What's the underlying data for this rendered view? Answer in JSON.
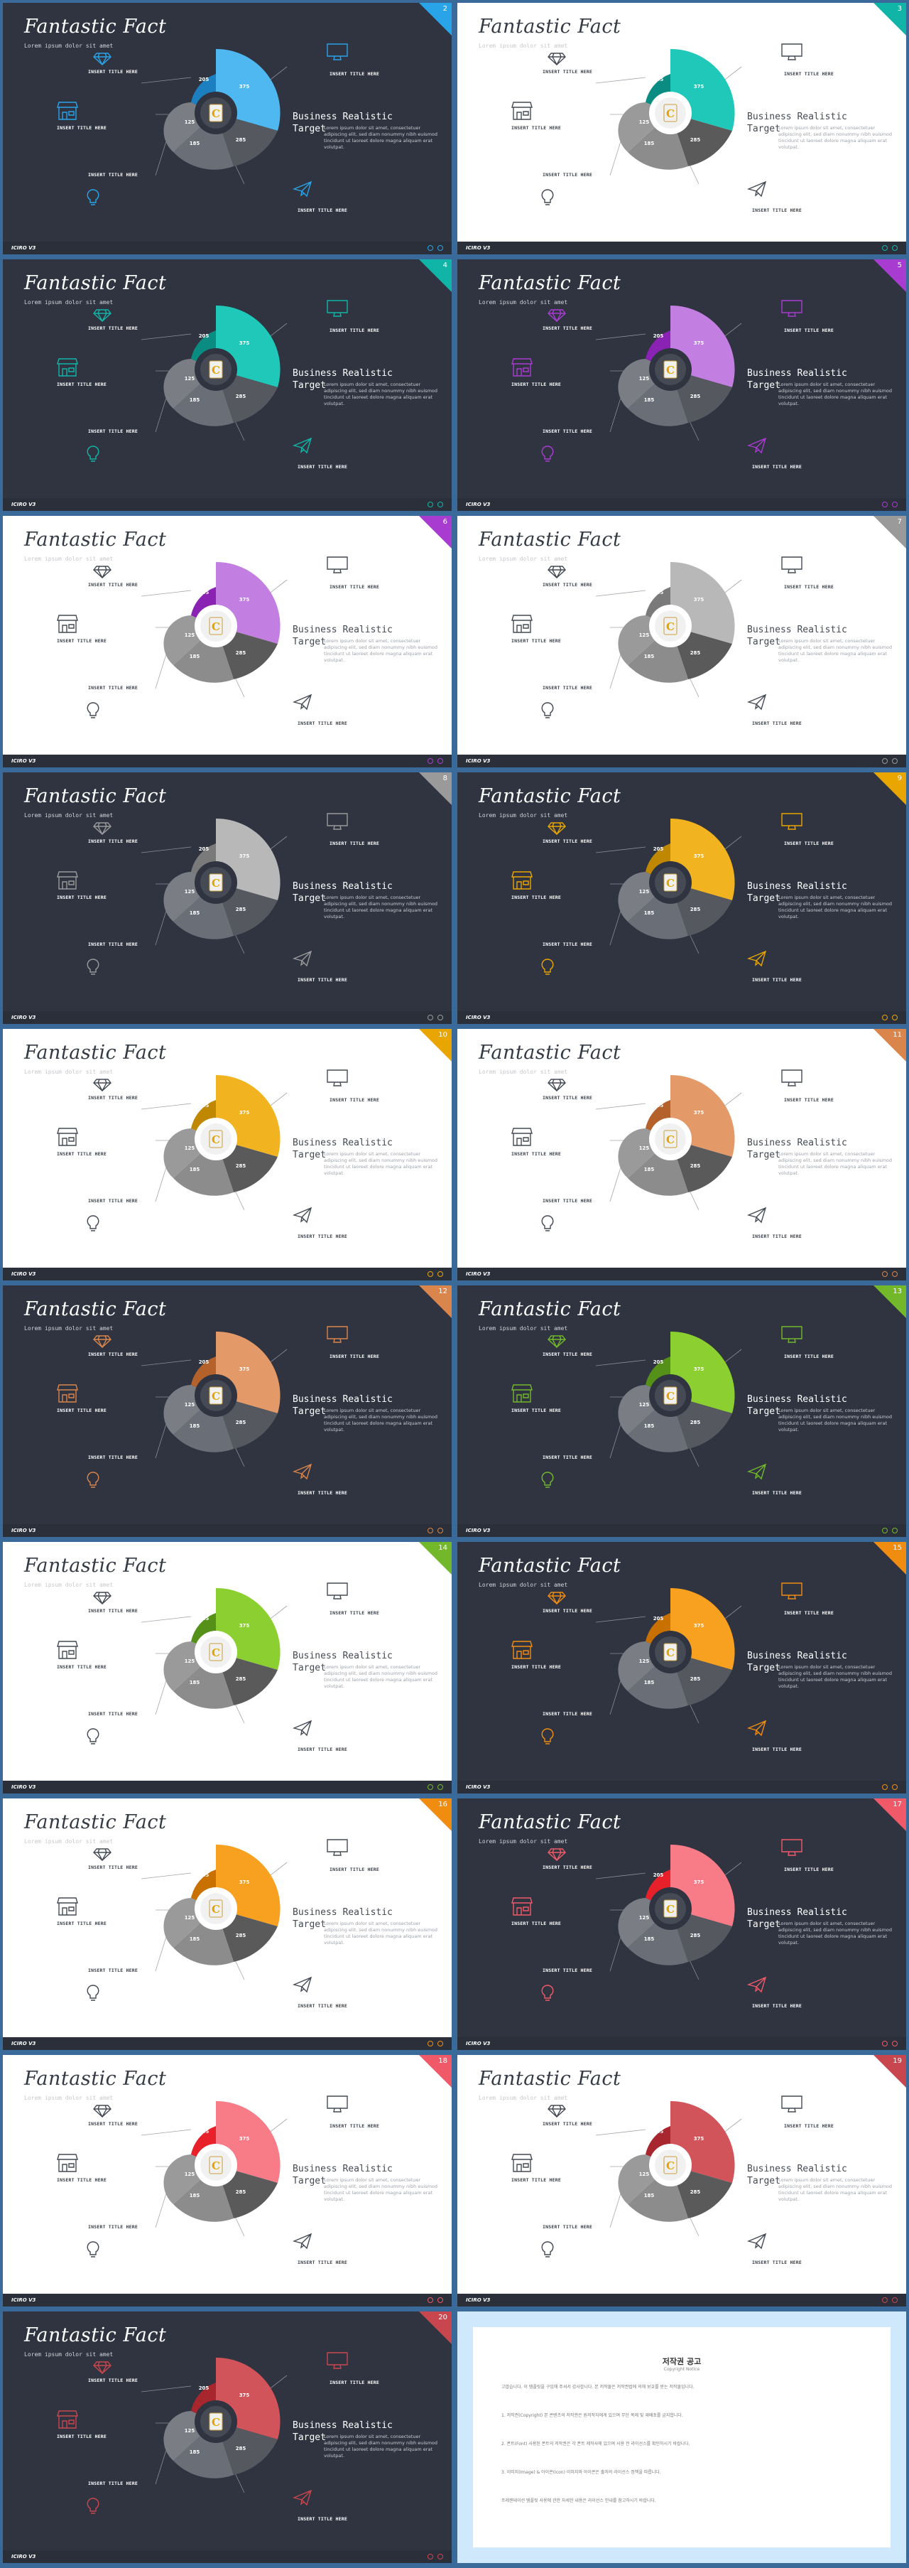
{
  "slide_common": {
    "title": "Fantastic Fact",
    "subtitle": "Lorem ipsum dolor sit amet",
    "values": [
      "205",
      "375",
      "285",
      "185",
      "125"
    ],
    "center_letter": "C",
    "label_top_left": "INSERT TITLE HERE",
    "label_top_right": "INSERT TITLE HERE",
    "label_mid_left": "INSERT TITLE HERE",
    "label_bottom_left": "INSERT TITLE HERE",
    "label_bottom_right": "INSERT TITLE HERE",
    "body_title": "Business Realistic Target",
    "body_text": "Lorem ipsum dolor sit amet, consectetuer adipiscing elit, sed diam nonummy nibh euismod tincidunt ut laoreet dolore magna aliquam erat volutpat.",
    "footer_brand": "ICIRO V3"
  },
  "slides": [
    {
      "page": "2",
      "theme": "dark",
      "accent": "#2aa4e8",
      "accent_light": "#4fb8f0",
      "accent_dark": "#1b7fc0"
    },
    {
      "page": "3",
      "theme": "light",
      "accent": "#11b5a8",
      "accent_light": "#1fc8b9",
      "accent_dark": "#0b8c83"
    },
    {
      "page": "4",
      "theme": "dark",
      "accent": "#11b5a8",
      "accent_light": "#1fc8b9",
      "accent_dark": "#0b8c83"
    },
    {
      "page": "5",
      "theme": "dark",
      "accent": "#a83cd0",
      "accent_light": "#c27ee0",
      "accent_dark": "#8a22b4"
    },
    {
      "page": "6",
      "theme": "light",
      "accent": "#a83cd0",
      "accent_light": "#c27ee0",
      "accent_dark": "#8a22b4"
    },
    {
      "page": "7",
      "theme": "light",
      "accent": "#9a9a9a",
      "accent_light": "#b8b8b8",
      "accent_dark": "#7a7a7a"
    },
    {
      "page": "8",
      "theme": "dark",
      "accent": "#9a9a9a",
      "accent_light": "#b8b8b8",
      "accent_dark": "#7a7a7a"
    },
    {
      "page": "9",
      "theme": "dark",
      "accent": "#e9a500",
      "accent_light": "#f2b320",
      "accent_dark": "#c08800"
    },
    {
      "page": "10",
      "theme": "light",
      "accent": "#e9a500",
      "accent_light": "#f2b320",
      "accent_dark": "#c08800"
    },
    {
      "page": "11",
      "theme": "light",
      "accent": "#d9854c",
      "accent_light": "#e49a68",
      "accent_dark": "#b4612c"
    },
    {
      "page": "12",
      "theme": "dark",
      "accent": "#d9854c",
      "accent_light": "#e49a68",
      "accent_dark": "#b4612c"
    },
    {
      "page": "13",
      "theme": "dark",
      "accent": "#72b82a",
      "accent_light": "#8bcf30",
      "accent_dark": "#559018"
    },
    {
      "page": "14",
      "theme": "light",
      "accent": "#72b82a",
      "accent_light": "#8bcf30",
      "accent_dark": "#559018"
    },
    {
      "page": "15",
      "theme": "dark",
      "accent": "#f08c10",
      "accent_light": "#f8a020",
      "accent_dark": "#c87000"
    },
    {
      "page": "16",
      "theme": "light",
      "accent": "#f08c10",
      "accent_light": "#f8a020",
      "accent_dark": "#c87000"
    },
    {
      "page": "17",
      "theme": "dark",
      "accent": "#f05a68",
      "accent_light": "#f77c88",
      "accent_dark": "#e8202a"
    },
    {
      "page": "18",
      "theme": "light",
      "accent": "#f05a68",
      "accent_light": "#f77c88",
      "accent_dark": "#e8202a"
    },
    {
      "page": "19",
      "theme": "light",
      "accent": "#c8464e",
      "accent_light": "#d0545a",
      "accent_dark": "#a8262e"
    },
    {
      "page": "20",
      "theme": "dark",
      "accent": "#c8464e",
      "accent_light": "#d0545a",
      "accent_dark": "#a8262e"
    }
  ],
  "notice": {
    "title": "저작권 공고",
    "subtitle": "Copyright Notice",
    "paragraphs": [
      "고맙습니다. 이 템플릿을 구입해 주셔서 감사합니다. 본 저작물은 저작권법에 의해 보호를 받는 저작물입니다.",
      "1. 저작권(Copyright) 본 콘텐츠의 저작권은 원저작자에게 있으며 무단 복제 및 재배포를 금지합니다.",
      "2. 폰트(Font) 사용된 폰트의 저작권은 각 폰트 제작사에 있으며 사용 전 라이선스를 확인하시기 바랍니다.",
      "3. 이미지(Image) & 아이콘(Icon) 이미지와 아이콘은 출처의 라이선스 정책을 따릅니다.",
      "프레젠테이션 템플릿 사용에 관한 자세한 내용은 라이선스 안내를 참고하시기 바랍니다."
    ]
  }
}
